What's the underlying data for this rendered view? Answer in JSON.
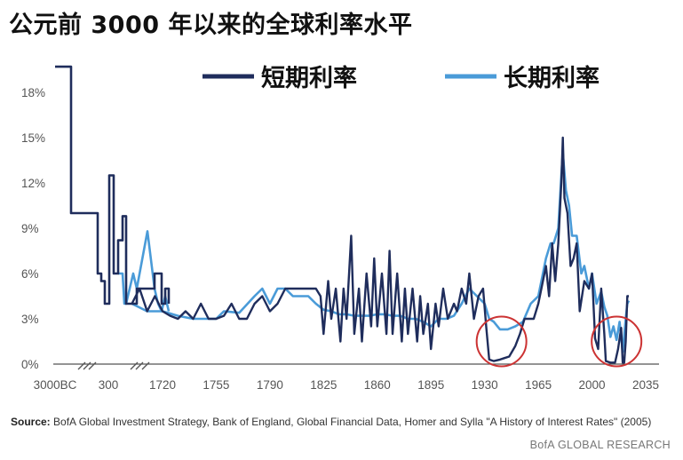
{
  "title": "公元前 3000 年以来的全球利率水平",
  "source_prefix": "Source:",
  "source_text": " BofA Global Investment Strategy, Bank of England, Global Financial Data, Homer and Sylla \"A History of Interest Rates\" (2005)",
  "credit": "BofA GLOBAL RESEARCH",
  "chart_data": {
    "type": "line",
    "title": "公元前 3000 年以来的全球利率水平",
    "legend_position": "top",
    "grid": false,
    "ylim": [
      0,
      19
    ],
    "y_ticks": [
      "0%",
      "3%",
      "6%",
      "9%",
      "12%",
      "15%",
      "18%"
    ],
    "x_ticks": [
      "3000BC",
      "300",
      "1720",
      "1755",
      "1790",
      "1825",
      "1860",
      "1895",
      "1930",
      "1965",
      "2000",
      "2035"
    ],
    "x_axis_breaks": [
      "between 3000BC and 300",
      "between 300 and 1720"
    ],
    "highlights": [
      {
        "label": "1930s–1940s short-rate lows",
        "x_range": [
          1932,
          1950
        ],
        "y_range": [
          0,
          3
        ]
      },
      {
        "label": "2010s short-rate lows",
        "x_range": [
          2009,
          2023
        ],
        "y_range": [
          0,
          3
        ]
      }
    ],
    "series": [
      {
        "name": "短期利率",
        "color": "#1f2d5c",
        "points": [
          [
            "3000BC",
            19.7
          ],
          [
            "3000BC+",
            19.7
          ],
          [
            "-2200",
            10.0
          ],
          [
            "-1000",
            10.0
          ],
          [
            "0",
            10.0
          ],
          [
            "100",
            6.0
          ],
          [
            "150",
            5.5
          ],
          [
            "200",
            4.0
          ],
          [
            "250",
            12.5
          ],
          [
            "300",
            6.0
          ],
          [
            "350",
            8.2
          ],
          [
            "420",
            9.8
          ],
          [
            "500",
            4.0
          ],
          [
            "700",
            5.0
          ],
          [
            "900",
            6.0
          ],
          [
            "1100",
            4.0
          ],
          [
            "1300",
            5.0
          ],
          [
            "1500",
            4.0
          ]
        ],
        "modern": [
          [
            1700,
            4.0
          ],
          [
            1705,
            5.0
          ],
          [
            1710,
            3.5
          ],
          [
            1715,
            4.5
          ],
          [
            1720,
            3.5
          ],
          [
            1725,
            3.2
          ],
          [
            1730,
            3.0
          ],
          [
            1735,
            3.5
          ],
          [
            1740,
            3.0
          ],
          [
            1745,
            4.0
          ],
          [
            1750,
            3.0
          ],
          [
            1755,
            3.0
          ],
          [
            1760,
            3.2
          ],
          [
            1765,
            4.0
          ],
          [
            1770,
            3.0
          ],
          [
            1775,
            3.0
          ],
          [
            1780,
            4.0
          ],
          [
            1785,
            4.5
          ],
          [
            1790,
            3.5
          ],
          [
            1795,
            4.0
          ],
          [
            1800,
            5.0
          ],
          [
            1805,
            5.0
          ],
          [
            1810,
            5.0
          ],
          [
            1815,
            5.0
          ],
          [
            1820,
            5.0
          ],
          [
            1823,
            4.5
          ],
          [
            1825,
            2.0
          ],
          [
            1828,
            5.5
          ],
          [
            1830,
            3.0
          ],
          [
            1833,
            5.0
          ],
          [
            1836,
            1.5
          ],
          [
            1838,
            5.0
          ],
          [
            1840,
            3.0
          ],
          [
            1843,
            8.5
          ],
          [
            1845,
            2.0
          ],
          [
            1848,
            5.0
          ],
          [
            1850,
            1.5
          ],
          [
            1853,
            6.0
          ],
          [
            1856,
            2.5
          ],
          [
            1858,
            7.0
          ],
          [
            1860,
            2.5
          ],
          [
            1863,
            6.0
          ],
          [
            1866,
            2.0
          ],
          [
            1868,
            7.5
          ],
          [
            1870,
            2.0
          ],
          [
            1873,
            6.0
          ],
          [
            1876,
            1.5
          ],
          [
            1878,
            5.0
          ],
          [
            1880,
            2.0
          ],
          [
            1883,
            5.0
          ],
          [
            1886,
            1.5
          ],
          [
            1888,
            4.5
          ],
          [
            1890,
            2.0
          ],
          [
            1893,
            4.0
          ],
          [
            1895,
            1.0
          ],
          [
            1898,
            4.0
          ],
          [
            1900,
            2.5
          ],
          [
            1903,
            5.0
          ],
          [
            1906,
            3.0
          ],
          [
            1910,
            4.0
          ],
          [
            1912,
            3.5
          ],
          [
            1915,
            5.0
          ],
          [
            1918,
            4.0
          ],
          [
            1920,
            6.0
          ],
          [
            1923,
            3.0
          ],
          [
            1926,
            4.5
          ],
          [
            1929,
            5.0
          ],
          [
            1931,
            2.5
          ],
          [
            1933,
            0.3
          ],
          [
            1936,
            0.2
          ],
          [
            1940,
            0.3
          ],
          [
            1943,
            0.4
          ],
          [
            1946,
            0.5
          ],
          [
            1950,
            1.2
          ],
          [
            1953,
            2.0
          ],
          [
            1956,
            3.0
          ],
          [
            1959,
            3.0
          ],
          [
            1962,
            3.0
          ],
          [
            1965,
            4.0
          ],
          [
            1968,
            5.5
          ],
          [
            1970,
            6.5
          ],
          [
            1972,
            4.5
          ],
          [
            1974,
            8.0
          ],
          [
            1976,
            5.5
          ],
          [
            1978,
            8.0
          ],
          [
            1980,
            12.0
          ],
          [
            1981,
            15.0
          ],
          [
            1982,
            11.0
          ],
          [
            1984,
            10.0
          ],
          [
            1986,
            6.5
          ],
          [
            1988,
            7.0
          ],
          [
            1990,
            8.0
          ],
          [
            1992,
            3.5
          ],
          [
            1995,
            5.5
          ],
          [
            1998,
            5.0
          ],
          [
            2000,
            6.0
          ],
          [
            2002,
            1.7
          ],
          [
            2004,
            1.0
          ],
          [
            2006,
            5.0
          ],
          [
            2008,
            2.0
          ],
          [
            2009,
            0.2
          ],
          [
            2012,
            0.1
          ],
          [
            2015,
            0.1
          ],
          [
            2017,
            1.0
          ],
          [
            2019,
            2.4
          ],
          [
            2020,
            0.1
          ],
          [
            2021,
            0.1
          ],
          [
            2022,
            1.5
          ],
          [
            2023,
            4.5
          ],
          [
            2024,
            4.5
          ]
        ]
      },
      {
        "name": "长期利率",
        "color": "#4a9bd8",
        "points": [
          [
            "300+",
            4.0
          ],
          [
            "350",
            6.0
          ],
          [
            "420",
            6.0
          ],
          [
            "500",
            4.0
          ],
          [
            "600",
            6.0
          ],
          [
            "700",
            5.0
          ],
          [
            "800",
            8.8
          ],
          [
            "900",
            5.0
          ],
          [
            "1000",
            4.0
          ],
          [
            "1100",
            3.5
          ],
          [
            "1300",
            4.5
          ],
          [
            "1500",
            3.5
          ]
        ],
        "modern": [
          [
            1700,
            4.0
          ],
          [
            1710,
            3.5
          ],
          [
            1720,
            3.5
          ],
          [
            1730,
            3.2
          ],
          [
            1740,
            3.0
          ],
          [
            1750,
            3.0
          ],
          [
            1755,
            3.0
          ],
          [
            1760,
            3.5
          ],
          [
            1770,
            3.4
          ],
          [
            1780,
            4.5
          ],
          [
            1785,
            5.0
          ],
          [
            1790,
            4.0
          ],
          [
            1795,
            5.0
          ],
          [
            1800,
            5.0
          ],
          [
            1805,
            4.5
          ],
          [
            1810,
            4.5
          ],
          [
            1815,
            4.5
          ],
          [
            1820,
            4.0
          ],
          [
            1825,
            3.6
          ],
          [
            1830,
            3.5
          ],
          [
            1835,
            3.3
          ],
          [
            1840,
            3.3
          ],
          [
            1845,
            3.2
          ],
          [
            1850,
            3.2
          ],
          [
            1855,
            3.2
          ],
          [
            1860,
            3.3
          ],
          [
            1865,
            3.3
          ],
          [
            1870,
            3.2
          ],
          [
            1875,
            3.2
          ],
          [
            1880,
            3.0
          ],
          [
            1885,
            3.0
          ],
          [
            1890,
            2.8
          ],
          [
            1895,
            2.5
          ],
          [
            1900,
            3.0
          ],
          [
            1905,
            3.0
          ],
          [
            1910,
            3.2
          ],
          [
            1915,
            4.0
          ],
          [
            1920,
            5.0
          ],
          [
            1925,
            4.5
          ],
          [
            1930,
            4.0
          ],
          [
            1933,
            3.0
          ],
          [
            1936,
            2.8
          ],
          [
            1940,
            2.3
          ],
          [
            1945,
            2.3
          ],
          [
            1950,
            2.5
          ],
          [
            1955,
            2.8
          ],
          [
            1960,
            4.0
          ],
          [
            1965,
            4.5
          ],
          [
            1970,
            7.0
          ],
          [
            1973,
            8.0
          ],
          [
            1975,
            8.0
          ],
          [
            1978,
            9.0
          ],
          [
            1980,
            12.5
          ],
          [
            1981,
            14.0
          ],
          [
            1983,
            11.5
          ],
          [
            1985,
            10.5
          ],
          [
            1987,
            8.5
          ],
          [
            1990,
            8.5
          ],
          [
            1993,
            6.0
          ],
          [
            1995,
            6.5
          ],
          [
            1998,
            5.0
          ],
          [
            2000,
            6.0
          ],
          [
            2003,
            4.0
          ],
          [
            2006,
            4.8
          ],
          [
            2008,
            3.8
          ],
          [
            2010,
            3.2
          ],
          [
            2012,
            1.8
          ],
          [
            2014,
            2.5
          ],
          [
            2016,
            1.6
          ],
          [
            2018,
            2.8
          ],
          [
            2020,
            0.8
          ],
          [
            2022,
            3.0
          ],
          [
            2023,
            4.0
          ],
          [
            2024,
            4.2
          ]
        ]
      }
    ]
  }
}
